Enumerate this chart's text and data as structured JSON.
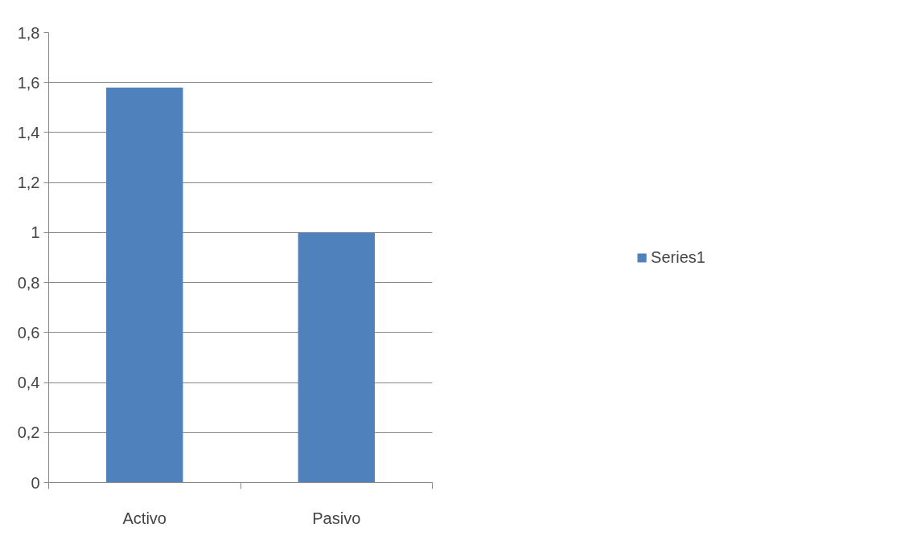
{
  "chart_data": {
    "type": "bar",
    "categories": [
      "Activo",
      "Pasivo"
    ],
    "series": [
      {
        "name": "Series1",
        "color": "#4f81bd",
        "values": [
          1.58,
          1.0
        ]
      }
    ],
    "ylim": [
      0,
      1.8
    ],
    "yticks": [
      0,
      {
        "value": 0.2,
        "label": "0,2"
      },
      {
        "value": 0.4,
        "label": "0,4"
      },
      {
        "value": 0.6,
        "label": "0,6"
      },
      {
        "value": 0.8,
        "label": "0,8"
      },
      1,
      {
        "value": 1.2,
        "label": "1,2"
      },
      {
        "value": 1.4,
        "label": "1,4"
      },
      {
        "value": 1.6,
        "label": "1,6"
      },
      {
        "value": 1.8,
        "label": "1,8"
      }
    ],
    "grid": "y",
    "legend": "right"
  }
}
